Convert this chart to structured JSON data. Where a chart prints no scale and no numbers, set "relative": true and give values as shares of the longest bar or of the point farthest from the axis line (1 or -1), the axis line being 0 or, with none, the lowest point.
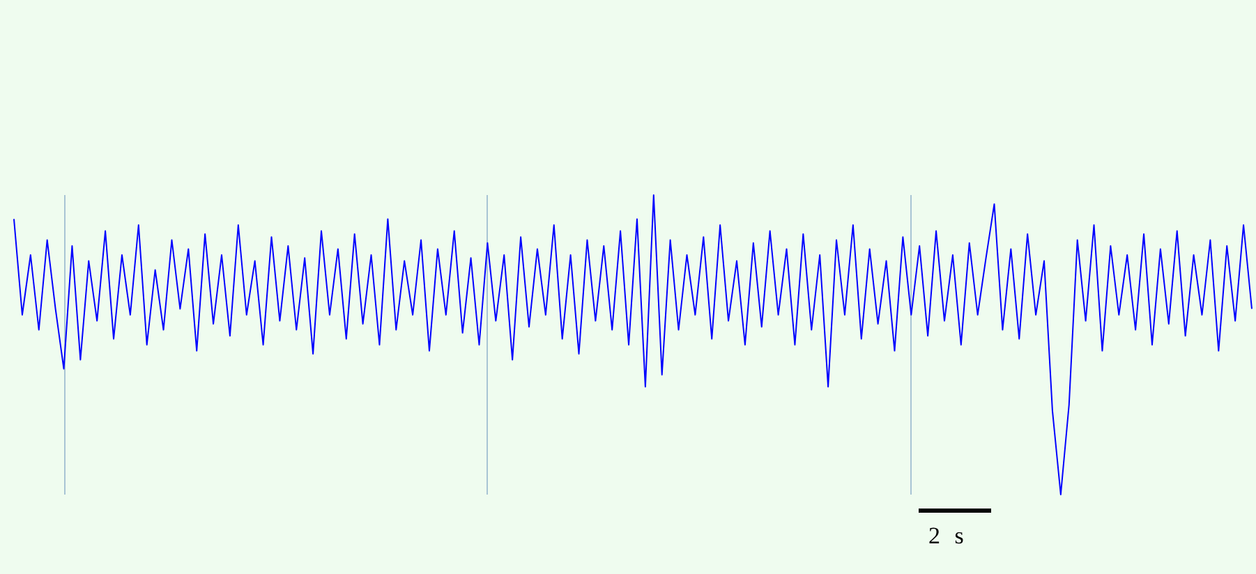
{
  "chart_data": {
    "type": "line",
    "relative": true,
    "color": "#0000ff",
    "grid": true,
    "line_style": "solid",
    "annotations": [
      "2 s"
    ],
    "categories": [
      null,
      null,
      null,
      null,
      null,
      null,
      null,
      null,
      null,
      null,
      null,
      null,
      null,
      null,
      null,
      null,
      null,
      null,
      null,
      null,
      null,
      null,
      null,
      null,
      null,
      null,
      null,
      null,
      null,
      null,
      null,
      null,
      null,
      null,
      null,
      null,
      null,
      null,
      null,
      null,
      null,
      null,
      null,
      null,
      null,
      null,
      null,
      null,
      null,
      null,
      null,
      null,
      null,
      null,
      null,
      null,
      null,
      null,
      null,
      null,
      null,
      null,
      null,
      null,
      null,
      null,
      null,
      null,
      null,
      null,
      null,
      null,
      null,
      null,
      null,
      null,
      null,
      null,
      null,
      null,
      null,
      null,
      null,
      null,
      null,
      null,
      null,
      null,
      null,
      null,
      null,
      null,
      null,
      null,
      null,
      null,
      null,
      null,
      null,
      null,
      null,
      null,
      null,
      null,
      null,
      null,
      null,
      null,
      null,
      null,
      null,
      null,
      null,
      null,
      null,
      null,
      null,
      null,
      null,
      null,
      null,
      null,
      null,
      null,
      null,
      null,
      null,
      null,
      null,
      null,
      null,
      null,
      null,
      null,
      null,
      null,
      null,
      null,
      null,
      null,
      null,
      null,
      null,
      null,
      null,
      null,
      null,
      null,
      null,
      null
    ],
    "values": [
      0.92,
      0.6,
      0.8,
      0.55,
      0.85,
      0.62,
      0.42,
      0.83,
      0.45,
      0.78,
      0.58,
      0.88,
      0.52,
      0.8,
      0.6,
      0.9,
      0.5,
      0.75,
      0.55,
      0.85,
      0.62,
      0.82,
      0.48,
      0.87,
      0.57,
      0.8,
      0.53,
      0.9,
      0.6,
      0.78,
      0.5,
      0.86,
      0.58,
      0.83,
      0.55,
      0.79,
      0.47,
      0.88,
      0.6,
      0.82,
      0.52,
      0.87,
      0.57,
      0.8,
      0.5,
      0.92,
      0.55,
      0.78,
      0.6,
      0.85,
      0.48,
      0.82,
      0.6,
      0.88,
      0.54,
      0.79,
      0.5,
      0.84,
      0.58,
      0.8,
      0.45,
      0.86,
      0.56,
      0.82,
      0.6,
      0.9,
      0.52,
      0.8,
      0.47,
      0.85,
      0.58,
      0.83,
      0.55,
      0.88,
      0.5,
      0.92,
      0.36,
      1.0,
      0.4,
      0.85,
      0.55,
      0.8,
      0.6,
      0.86,
      0.52,
      0.9,
      0.58,
      0.78,
      0.5,
      0.84,
      0.56,
      0.88,
      0.6,
      0.82,
      0.5,
      0.87,
      0.55,
      0.8,
      0.36,
      0.85,
      0.6,
      0.9,
      0.52,
      0.82,
      0.57,
      0.78,
      0.48,
      0.86,
      0.6,
      0.83,
      0.53,
      0.88,
      0.58,
      0.8,
      0.5,
      0.84,
      0.6,
      0.79,
      0.97,
      0.55,
      0.82,
      0.52,
      0.87,
      0.6,
      0.78,
      0.28,
      0.0,
      0.3,
      0.85,
      0.58,
      0.9,
      0.48,
      0.83,
      0.6,
      0.8,
      0.55,
      0.87,
      0.5,
      0.82,
      0.57,
      0.88,
      0.53,
      0.8,
      0.6,
      0.85,
      0.48,
      0.83,
      0.58,
      0.9,
      0.62
    ]
  }
}
